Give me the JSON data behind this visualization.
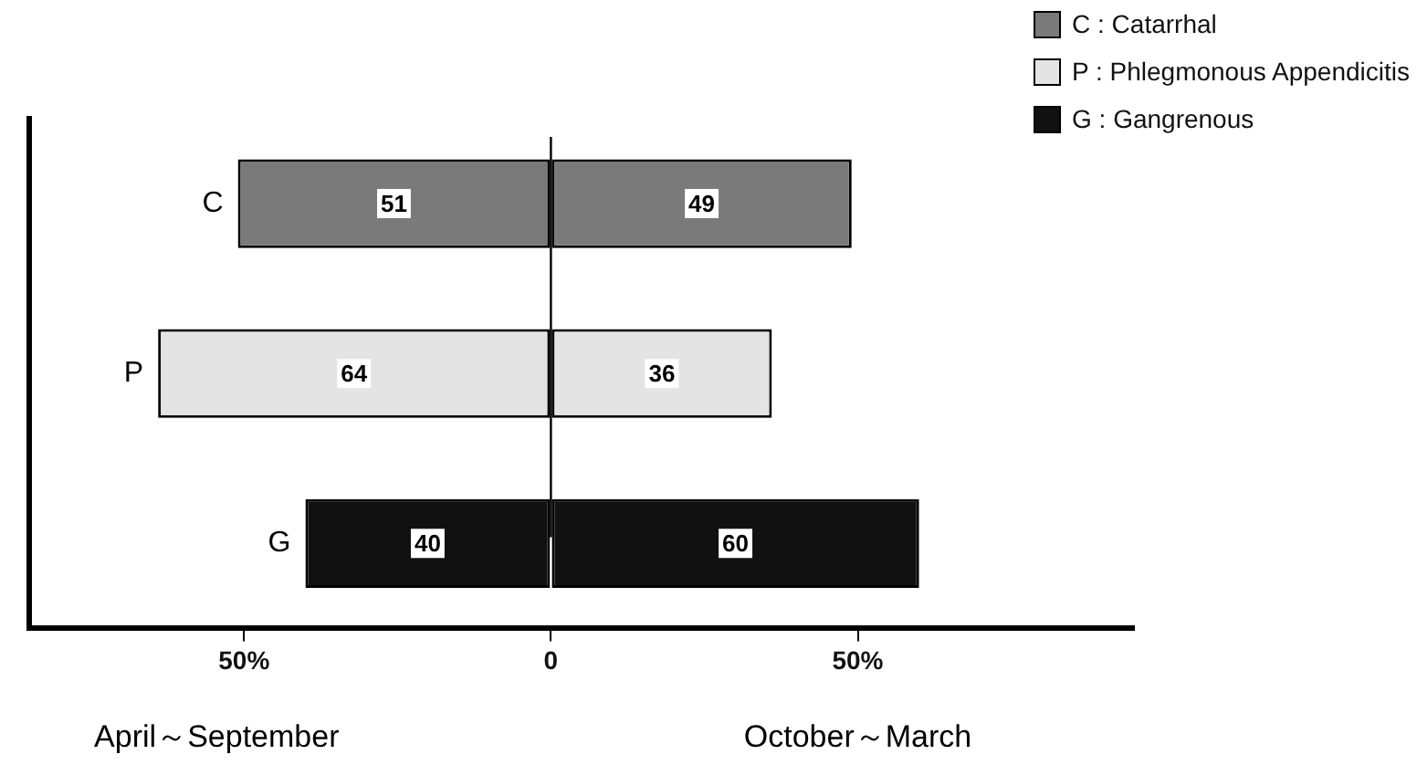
{
  "chart_data": {
    "type": "bar",
    "orientation": "horizontal",
    "categories": [
      "C",
      "P",
      "G"
    ],
    "series": [
      {
        "name": "C : Catarrhal",
        "color": "#7a7a7a",
        "values": [
          51,
          null,
          null
        ],
        "base": [
          -51,
          null,
          null
        ]
      },
      {
        "color": "#7a7a7a",
        "values": [
          49,
          null,
          null
        ],
        "base": [
          0,
          null,
          null
        ]
      },
      {
        "name": "P : Phlegmonous Appendicitis",
        "color": "#e4e4e4",
        "values": [
          null,
          64,
          null
        ],
        "base": [
          null,
          -64,
          null
        ]
      },
      {
        "color": "#e4e4e4",
        "values": [
          null,
          36,
          null
        ],
        "base": [
          null,
          0,
          null
        ]
      },
      {
        "name": "G : Gangrenous",
        "color": "#111111",
        "values": [
          null,
          null,
          40
        ],
        "base": [
          null,
          null,
          -40
        ]
      },
      {
        "color": "#111111",
        "values": [
          null,
          null,
          60
        ],
        "base": [
          null,
          null,
          0
        ]
      }
    ],
    "xlim": [
      -85,
      95
    ],
    "xticks": [
      {
        "value": -50,
        "label": "50%"
      },
      0,
      {
        "value": 50,
        "label": "50%"
      }
    ],
    "ref_lines": [
      {
        "axis": "x",
        "value": 0,
        "color": "#000000"
      }
    ],
    "annotations": [
      "April～September",
      "October～March"
    ],
    "data_labels": true,
    "legend": "top right",
    "grid": false
  }
}
